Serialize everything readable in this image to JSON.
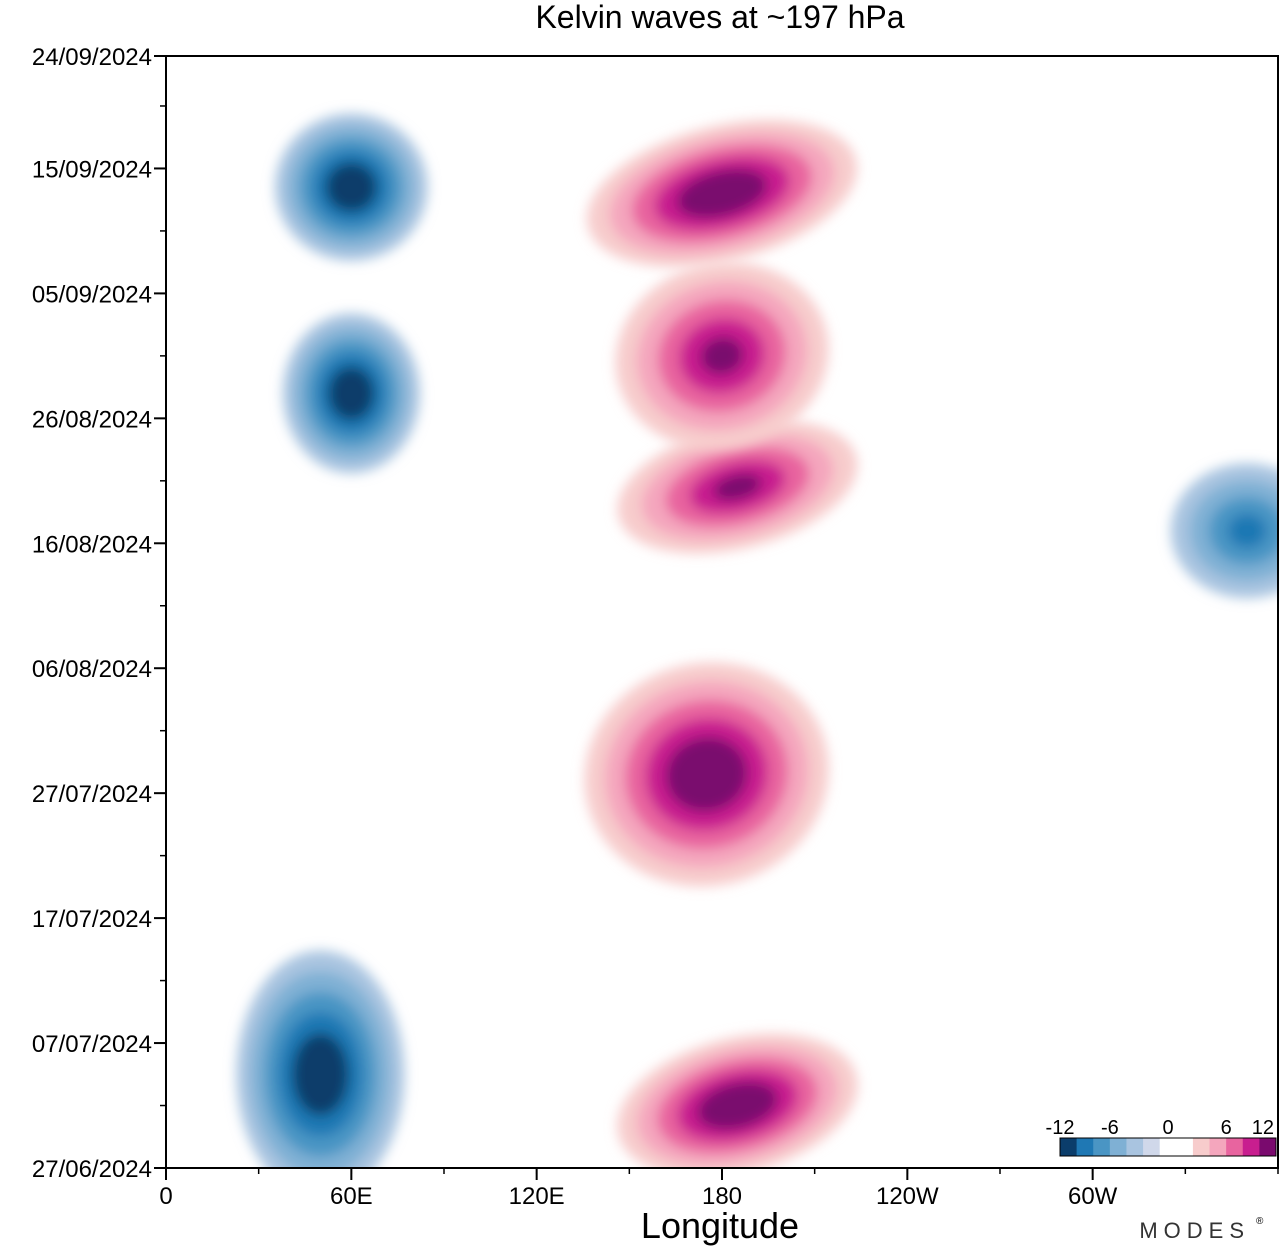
{
  "chart_data": {
    "type": "heatmap",
    "title": "Kelvin waves at ~197 hPa",
    "xlabel": "Longitude",
    "ylabel": "",
    "x_ticks": [
      {
        "lon": 0,
        "label": "0"
      },
      {
        "lon": 60,
        "label": "60E"
      },
      {
        "lon": 120,
        "label": "120E"
      },
      {
        "lon": 180,
        "label": "180"
      },
      {
        "lon": 240,
        "label": "120W"
      },
      {
        "lon": 300,
        "label": "60W"
      }
    ],
    "x_range": [
      0,
      360
    ],
    "y_ticks": [
      {
        "date": "2024-06-27",
        "label": "27/06/2024"
      },
      {
        "date": "2024-07-07",
        "label": "07/07/2024"
      },
      {
        "date": "2024-07-17",
        "label": "17/07/2024"
      },
      {
        "date": "2024-07-27",
        "label": "27/07/2024"
      },
      {
        "date": "2024-08-06",
        "label": "06/08/2024"
      },
      {
        "date": "2024-08-16",
        "label": "16/08/2024"
      },
      {
        "date": "2024-08-26",
        "label": "26/08/2024"
      },
      {
        "date": "2024-09-05",
        "label": "05/09/2024"
      },
      {
        "date": "2024-09-15",
        "label": "15/09/2024"
      },
      {
        "date": "2024-09-24",
        "label": "24/09/2024"
      }
    ],
    "y_range": [
      "2024-06-27",
      "2024-09-24"
    ],
    "colorbar": {
      "labels": [
        "-12",
        "-6",
        "0",
        "6",
        "12"
      ],
      "levels": [
        -12,
        -10,
        -8,
        -6,
        -4,
        -2,
        0,
        2,
        4,
        6,
        8,
        10,
        12
      ],
      "colors": [
        "#0b3d6b",
        "#1f78b4",
        "#4a95c4",
        "#7fb0d4",
        "#a9c4e0",
        "#d0d8ea",
        "#ffffff",
        "#ffffff",
        "#f7cccc",
        "#f4a6bd",
        "#e8649f",
        "#c81e8f",
        "#7a0a6e"
      ]
    },
    "features": [
      {
        "sign": "negative",
        "lon": 50,
        "lon_span": 35,
        "date_start": "2024-06-27",
        "date_end": "2024-07-12",
        "peak": -11
      },
      {
        "sign": "negative",
        "lon": 60,
        "lon_span": 25,
        "date_start": "2024-08-24",
        "date_end": "2024-09-01",
        "peak": -12
      },
      {
        "sign": "negative",
        "lon": 60,
        "lon_span": 30,
        "date_start": "2024-09-10",
        "date_end": "2024-09-17",
        "peak": -11
      },
      {
        "sign": "negative",
        "lon": 350,
        "lon_span": 30,
        "date_start": "2024-08-14",
        "date_end": "2024-08-20",
        "peak": -8
      },
      {
        "sign": "positive",
        "lon": 175,
        "lon_span": 60,
        "date_start": "2024-07-22",
        "date_end": "2024-08-04",
        "peak": 12
      },
      {
        "sign": "positive",
        "lon": 185,
        "lon_span": 60,
        "date_start": "2024-08-18",
        "date_end": "2024-08-23",
        "peak": 10
      },
      {
        "sign": "positive",
        "lon": 180,
        "lon_span": 50,
        "date_start": "2024-08-26",
        "date_end": "2024-09-05",
        "peak": 10
      },
      {
        "sign": "positive",
        "lon": 180,
        "lon_span": 70,
        "date_start": "2024-09-10",
        "date_end": "2024-09-16",
        "peak": 12
      },
      {
        "sign": "positive",
        "lon": 185,
        "lon_span": 60,
        "date_start": "2024-06-29",
        "date_end": "2024-07-05",
        "peak": 11
      }
    ],
    "grid": false,
    "legend_position": "bottom-right"
  },
  "branding": {
    "text": "MODES",
    "mark": "®"
  }
}
